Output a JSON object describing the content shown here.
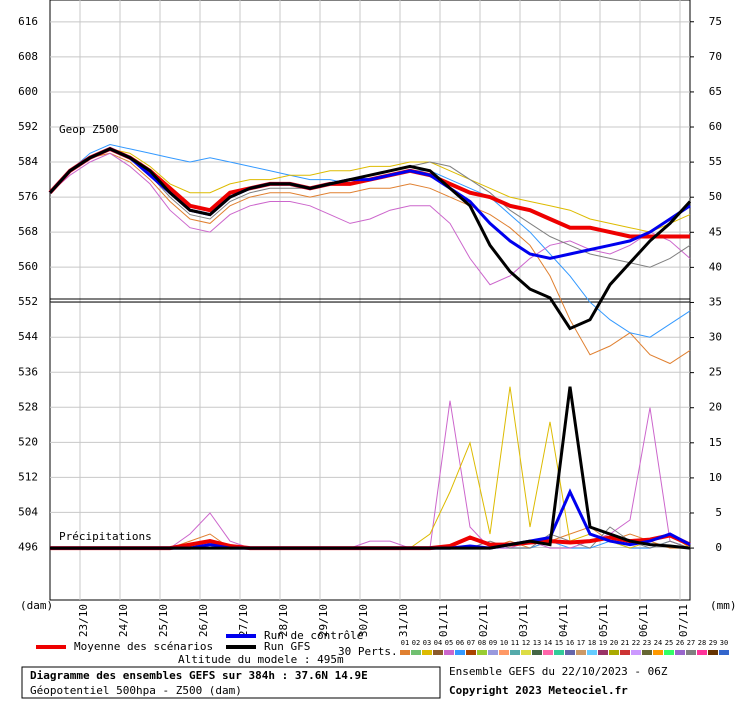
{
  "chart_data": {
    "type": "line",
    "panel_labels": [
      "Geop Z500",
      "Précipitations"
    ],
    "y_unit": "(dam)",
    "y2_unit": "(mm)",
    "x": [
      0,
      12,
      24,
      36,
      48,
      60,
      72,
      84,
      96,
      108,
      120,
      132,
      144,
      156,
      168,
      180,
      192,
      204,
      216,
      228,
      240,
      252,
      264,
      276,
      288,
      300,
      312,
      324,
      336,
      348,
      360,
      372,
      384
    ],
    "xlim": [
      0,
      384
    ],
    "xticks": [
      {
        "value": 18,
        "label": "23/10"
      },
      {
        "value": 42,
        "label": "24/10"
      },
      {
        "value": 66,
        "label": "25/10"
      },
      {
        "value": 90,
        "label": "26/10"
      },
      {
        "value": 114,
        "label": "27/10"
      },
      {
        "value": 138,
        "label": "28/10"
      },
      {
        "value": 162,
        "label": "29/10"
      },
      {
        "value": 186,
        "label": "30/10"
      },
      {
        "value": 210,
        "label": "31/10"
      },
      {
        "value": 234,
        "label": "01/11"
      },
      {
        "value": 258,
        "label": "02/11"
      },
      {
        "value": 282,
        "label": "03/11"
      },
      {
        "value": 306,
        "label": "04/11"
      },
      {
        "value": 330,
        "label": "05/11"
      },
      {
        "value": 354,
        "label": "06/11"
      },
      {
        "value": 378,
        "label": "07/11"
      }
    ],
    "ylim": [
      484,
      621
    ],
    "yticks": [
      496,
      504,
      512,
      520,
      528,
      536,
      544,
      552,
      560,
      568,
      576,
      584,
      592,
      600,
      608,
      616
    ],
    "y2lim": [
      -7.4,
      78.1
    ],
    "y2ticks": [
      0,
      5,
      10,
      15,
      20,
      25,
      30,
      35,
      40,
      45,
      50,
      55,
      60,
      65,
      70,
      75
    ],
    "grid": true,
    "series": [
      {
        "name": "01",
        "color": "#e08030",
        "width": 1,
        "values": [
          577,
          582,
          585,
          586,
          584,
          580,
          575,
          571,
          570,
          574,
          576,
          577,
          577,
          576,
          577,
          577,
          578,
          578,
          579,
          578,
          576,
          574,
          572,
          569,
          565,
          558,
          548,
          540,
          542,
          545,
          540,
          538,
          541
        ],
        "precip": [
          0,
          0,
          0,
          0,
          0,
          0,
          0,
          1,
          2,
          0,
          0,
          0,
          0,
          0,
          0,
          0,
          0,
          0,
          0,
          0,
          0,
          0,
          0,
          1,
          0,
          1,
          2,
          3,
          1,
          2,
          1,
          0,
          0
        ]
      },
      {
        "name": "06",
        "color": "#3399ff",
        "width": 1,
        "values": [
          577,
          582,
          586,
          588,
          587,
          586,
          585,
          584,
          585,
          584,
          583,
          582,
          581,
          580,
          580,
          579,
          580,
          581,
          582,
          582,
          580,
          578,
          576,
          572,
          568,
          563,
          558,
          552,
          548,
          545,
          544,
          547,
          550
        ],
        "precip": [
          0,
          0,
          0,
          0,
          0,
          0,
          0,
          0,
          1,
          0,
          0,
          0,
          0,
          0,
          0,
          0,
          0,
          0,
          0,
          0,
          0,
          0,
          0,
          0,
          0,
          1,
          0,
          0,
          1,
          0,
          0,
          1,
          0
        ]
      },
      {
        "name": "05",
        "color": "#cc66cc",
        "width": 1,
        "values": [
          577,
          581,
          584,
          586,
          583,
          579,
          573,
          569,
          568,
          572,
          574,
          575,
          575,
          574,
          572,
          570,
          571,
          573,
          574,
          574,
          570,
          562,
          556,
          558,
          562,
          565,
          566,
          564,
          563,
          565,
          568,
          566,
          562
        ],
        "precip": [
          0,
          0,
          0,
          0,
          0,
          0,
          0,
          2,
          5,
          1,
          0,
          0,
          0,
          0,
          0,
          0,
          1,
          1,
          0,
          0,
          21,
          3,
          0,
          0,
          1,
          0,
          0,
          1,
          2,
          4,
          20,
          1,
          0
        ]
      },
      {
        "name": "03",
        "color": "#ddbb00",
        "width": 1,
        "values": [
          577,
          582,
          585,
          587,
          586,
          583,
          579,
          577,
          577,
          579,
          580,
          580,
          581,
          581,
          582,
          582,
          583,
          583,
          584,
          584,
          582,
          580,
          578,
          576,
          575,
          574,
          573,
          571,
          570,
          569,
          568,
          570,
          572
        ],
        "precip": [
          0,
          0,
          0,
          0,
          0,
          0,
          0,
          0,
          0,
          0,
          0,
          0,
          0,
          0,
          0,
          0,
          0,
          0,
          0,
          2,
          8,
          15,
          2,
          23,
          3,
          18,
          1,
          2,
          1,
          0,
          1,
          2,
          0
        ]
      },
      {
        "name": "27",
        "color": "#808080",
        "width": 1,
        "values": [
          577,
          582,
          585,
          587,
          585,
          581,
          576,
          572,
          571,
          575,
          577,
          578,
          578,
          578,
          579,
          580,
          581,
          582,
          583,
          584,
          583,
          580,
          577,
          573,
          570,
          567,
          565,
          563,
          562,
          561,
          560,
          562,
          565
        ],
        "precip": [
          0,
          0,
          0,
          0,
          0,
          0,
          0,
          0,
          0,
          0,
          0,
          0,
          0,
          0,
          0,
          0,
          0,
          0,
          0,
          0,
          0,
          0,
          1,
          0,
          0,
          2,
          1,
          0,
          3,
          1,
          0,
          1,
          0
        ]
      },
      {
        "name": "Moyenne des scénarios",
        "color": "#ee0000",
        "width": 4,
        "values": [
          577,
          582,
          585,
          587,
          585,
          582,
          578,
          574,
          573,
          577,
          578,
          579,
          579,
          578,
          579,
          579,
          580,
          581,
          582,
          581,
          579,
          577,
          576,
          574,
          573,
          571,
          569,
          569,
          568,
          567,
          567,
          567,
          567
        ],
        "precip": [
          0,
          0,
          0,
          0,
          0,
          0,
          0,
          0.5,
          1,
          0.3,
          0,
          0,
          0,
          0,
          0,
          0,
          0,
          0,
          0,
          0,
          0.3,
          1.5,
          0.5,
          0.5,
          0.8,
          1,
          0.8,
          1,
          1.5,
          1,
          1.2,
          1.8,
          0.5
        ]
      },
      {
        "name": "Run de contrôle",
        "color": "#0000ee",
        "width": 3,
        "values": [
          577,
          582,
          585,
          587,
          585,
          581,
          577,
          573,
          572,
          576,
          578,
          579,
          579,
          578,
          579,
          580,
          580,
          581,
          582,
          581,
          578,
          575,
          570,
          566,
          563,
          562,
          563,
          564,
          565,
          566,
          568,
          571,
          574
        ],
        "precip": [
          0,
          0,
          0,
          0,
          0,
          0,
          0,
          0,
          0.5,
          0,
          0,
          0,
          0,
          0,
          0,
          0,
          0,
          0,
          0,
          0,
          0,
          0.3,
          0,
          0.5,
          1,
          1.5,
          8,
          2,
          1,
          0.5,
          1,
          2,
          0.5
        ]
      },
      {
        "name": "Run GFS",
        "color": "#000000",
        "width": 3,
        "values": [
          577,
          582,
          585,
          587,
          585,
          582,
          577,
          573,
          572,
          576,
          578,
          579,
          579,
          578,
          579,
          580,
          581,
          582,
          583,
          582,
          578,
          574,
          565,
          559,
          555,
          553,
          546,
          548,
          556,
          561,
          566,
          570,
          575
        ],
        "precip": [
          0,
          0,
          0,
          0,
          0,
          0,
          0,
          0,
          0,
          0,
          0,
          0,
          0,
          0,
          0,
          0,
          0,
          0,
          0,
          0,
          0,
          0,
          0,
          0.5,
          1,
          0.5,
          23,
          3,
          2,
          1,
          0.5,
          0.3,
          0
        ]
      }
    ],
    "perturbation_legend": {
      "title": "30 Perts.",
      "items": [
        {
          "label": "01",
          "color": "#e08030"
        },
        {
          "label": "02",
          "color": "#70c070"
        },
        {
          "label": "03",
          "color": "#ddbb00"
        },
        {
          "label": "04",
          "color": "#8b5a2b"
        },
        {
          "label": "05",
          "color": "#cc66cc"
        },
        {
          "label": "06",
          "color": "#3399ff"
        },
        {
          "label": "07",
          "color": "#aa4400"
        },
        {
          "label": "08",
          "color": "#99cc33"
        },
        {
          "label": "09",
          "color": "#9999dd"
        },
        {
          "label": "10",
          "color": "#ff9966"
        },
        {
          "label": "11",
          "color": "#55aaaa"
        },
        {
          "label": "12",
          "color": "#dddd44"
        },
        {
          "label": "13",
          "color": "#446644"
        },
        {
          "label": "14",
          "color": "#ff66aa"
        },
        {
          "label": "15",
          "color": "#33cc99"
        },
        {
          "label": "16",
          "color": "#6666aa"
        },
        {
          "label": "17",
          "color": "#cc9966"
        },
        {
          "label": "18",
          "color": "#66ccff"
        },
        {
          "label": "19",
          "color": "#993366"
        },
        {
          "label": "20",
          "color": "#aaaa00"
        },
        {
          "label": "21",
          "color": "#cc3333"
        },
        {
          "label": "22",
          "color": "#cc99ff"
        },
        {
          "label": "23",
          "color": "#666633"
        },
        {
          "label": "24",
          "color": "#ff9900"
        },
        {
          "label": "25",
          "color": "#33ff66"
        },
        {
          "label": "26",
          "color": "#9966cc"
        },
        {
          "label": "27",
          "color": "#808080"
        },
        {
          "label": "28",
          "color": "#ff3399"
        },
        {
          "label": "29",
          "color": "#663300"
        },
        {
          "label": "30",
          "color": "#3366cc"
        }
      ]
    },
    "altitude_note": "Altitude du modele : 495m",
    "info_box": [
      "Diagramme des ensembles GEFS sur 384h : 37.6N 14.9E",
      "Géopotentiel 500hpa - Z500 (dam)"
    ],
    "run_info": "Ensemble GEFS du 22/10/2023 - 06Z",
    "copyright": "Copyright 2023 Meteociel.fr"
  }
}
